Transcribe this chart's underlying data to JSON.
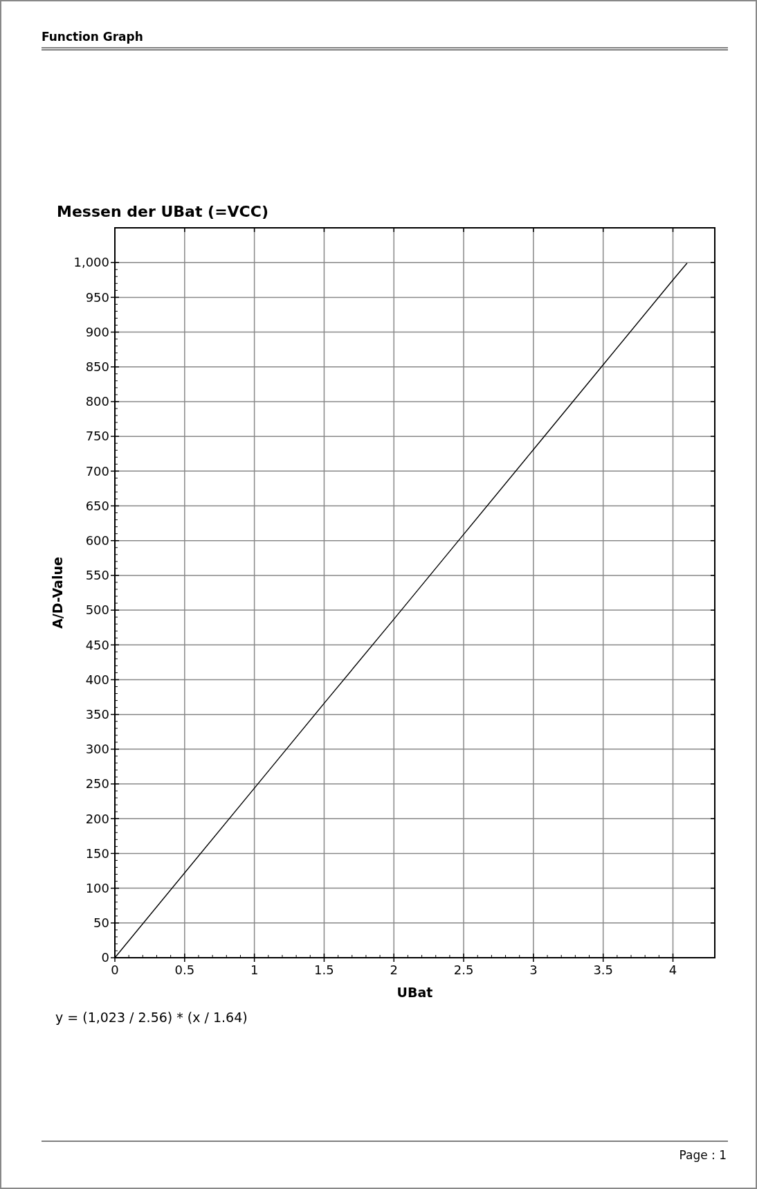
{
  "chart_data": {
    "type": "line",
    "title": "Messen der UBat (=VCC)",
    "xlabel": "UBat",
    "ylabel": "A/D-Value",
    "annotations": [
      "Function Graph",
      "y = (1,023 / 2.56) * (x / 1.64)",
      "Page : 1"
    ],
    "x": [
      0,
      0.5,
      1,
      1.5,
      2,
      2.5,
      3,
      3.5,
      4,
      4.1
    ],
    "series": [
      {
        "color": "#000000",
        "values": [
          0,
          122,
          244,
          366,
          487,
          609,
          731,
          853,
          975,
          999
        ]
      }
    ],
    "xlim": [
      0,
      4.3
    ],
    "xticks": [
      0,
      0.5,
      1,
      1.5,
      2,
      2.5,
      3,
      3.5,
      4
    ],
    "ylim": [
      0,
      1050
    ],
    "yticks": [
      0,
      50,
      100,
      150,
      200,
      250,
      300,
      350,
      400,
      450,
      500,
      550,
      600,
      650,
      700,
      750,
      800,
      850,
      900,
      950,
      {
        "value": 1000,
        "label": "1,000"
      }
    ],
    "grid": true,
    "marker": "none",
    "line_style": "solid"
  }
}
